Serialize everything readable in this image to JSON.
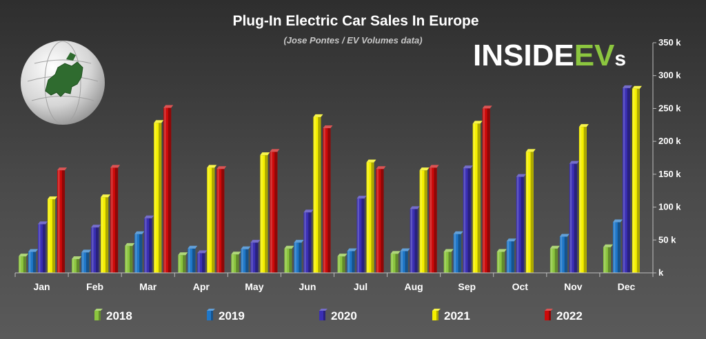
{
  "chart_data": {
    "type": "bar",
    "title": "Plug-In Electric Car Sales In Europe",
    "subtitle": "(Jose Pontes / EV Volumes data)",
    "logo": {
      "part1": "INSIDE",
      "part2": "EV",
      "part3": "s"
    },
    "categories": [
      "Jan",
      "Feb",
      "Mar",
      "Apr",
      "May",
      "Jun",
      "Jul",
      "Aug",
      "Sep",
      "Oct",
      "Nov",
      "Dec"
    ],
    "yticks": [
      0,
      50000,
      100000,
      150000,
      200000,
      250000,
      300000,
      350000
    ],
    "ytick_labels": [
      "k",
      "50 k",
      "100 k",
      "150 k",
      "200 k",
      "250 k",
      "300 k",
      "350 k"
    ],
    "ylim": [
      0,
      350000
    ],
    "grid": false,
    "legend_position": "bottom",
    "series": [
      {
        "name": "2018",
        "color": "#8cc63f",
        "values": [
          25000,
          21000,
          41000,
          27000,
          28000,
          37000,
          25000,
          29000,
          32000,
          32000,
          37000,
          39000
        ]
      },
      {
        "name": "2019",
        "color": "#1f77c8",
        "values": [
          32000,
          31000,
          59000,
          37000,
          36000,
          46000,
          33000,
          33000,
          59000,
          48000,
          55000,
          77000
        ]
      },
      {
        "name": "2020",
        "color": "#3a2fb4",
        "values": [
          74000,
          69000,
          83000,
          30000,
          46000,
          92000,
          113000,
          97000,
          159000,
          146000,
          166000,
          281000
        ]
      },
      {
        "name": "2021",
        "color": "#f5f000",
        "values": [
          112000,
          115000,
          228000,
          160000,
          179000,
          237000,
          168000,
          156000,
          227000,
          184000,
          222000,
          280000
        ]
      },
      {
        "name": "2022",
        "color": "#cc0a0a",
        "values": [
          156000,
          160000,
          251000,
          158000,
          184000,
          220000,
          158000,
          160000,
          250000,
          null,
          null,
          null
        ]
      }
    ]
  }
}
